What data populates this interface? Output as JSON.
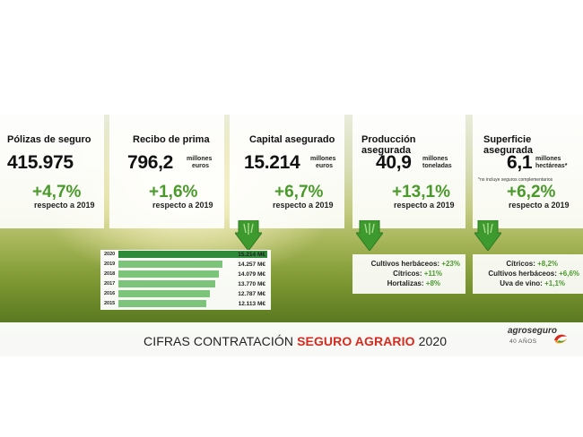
{
  "stats": [
    {
      "title": "Pólizas de seguro",
      "value": "415.975",
      "unit": [],
      "note": "",
      "change": "+4,7%",
      "compare": "respecto a 2019"
    },
    {
      "title": "Recibo de prima",
      "value": "796,2",
      "unit": [
        "millones",
        "euros"
      ],
      "note": "",
      "change": "+1,6%",
      "compare": "respecto a 2019"
    },
    {
      "title": "Capital asegurado",
      "value": "15.214",
      "unit": [
        "millones",
        "euros"
      ],
      "note": "",
      "change": "+6,7%",
      "compare": "respecto a 2019"
    },
    {
      "title": "Producción asegurada",
      "value": "40,9",
      "unit": [
        "millones",
        "toneladas"
      ],
      "note": "",
      "change": "+13,1%",
      "compare": "respecto a 2019"
    },
    {
      "title": "Superficie asegurada",
      "value": "6,1",
      "unit": [
        "millones",
        "hectáreas*"
      ],
      "note": "*no incluye seguros complementarios",
      "change": "+6,2%",
      "compare": "respecto a 2019"
    }
  ],
  "capital_history": [
    {
      "year": "2020",
      "value": "15.214 M€"
    },
    {
      "year": "2019",
      "value": "14.257 M€"
    },
    {
      "year": "2018",
      "value": "14.079 M€"
    },
    {
      "year": "2017",
      "value": "13.770 M€"
    },
    {
      "year": "2016",
      "value": "12.787 M€"
    },
    {
      "year": "2015",
      "value": "12.113 M€"
    }
  ],
  "production_breakdown": [
    {
      "label": "Cultivos herbáceos:",
      "change": "+23%"
    },
    {
      "label": "Cítricos:",
      "change": "+11%"
    },
    {
      "label": "Hortalizas:",
      "change": "+8%"
    }
  ],
  "surface_breakdown": [
    {
      "label": "Cítricos:",
      "change": "+8,2%"
    },
    {
      "label": "Cultivos herbáceos:",
      "change": "+6,6%"
    },
    {
      "label": "Uva de vino:",
      "change": "+1,1%"
    }
  ],
  "footer": {
    "title_prefix": "CIFRAS CONTRATACIÓN",
    "title_highlight": "SEGURO AGRARIO",
    "title_suffix": "2020"
  },
  "logo": {
    "name": "agroseguro",
    "years": "40 AÑOS"
  },
  "colors": {
    "green": "#4a9a2b",
    "bar_dark": "#2e8b3a",
    "bar_light": "#7cc47a",
    "red": "#d52b1e"
  }
}
